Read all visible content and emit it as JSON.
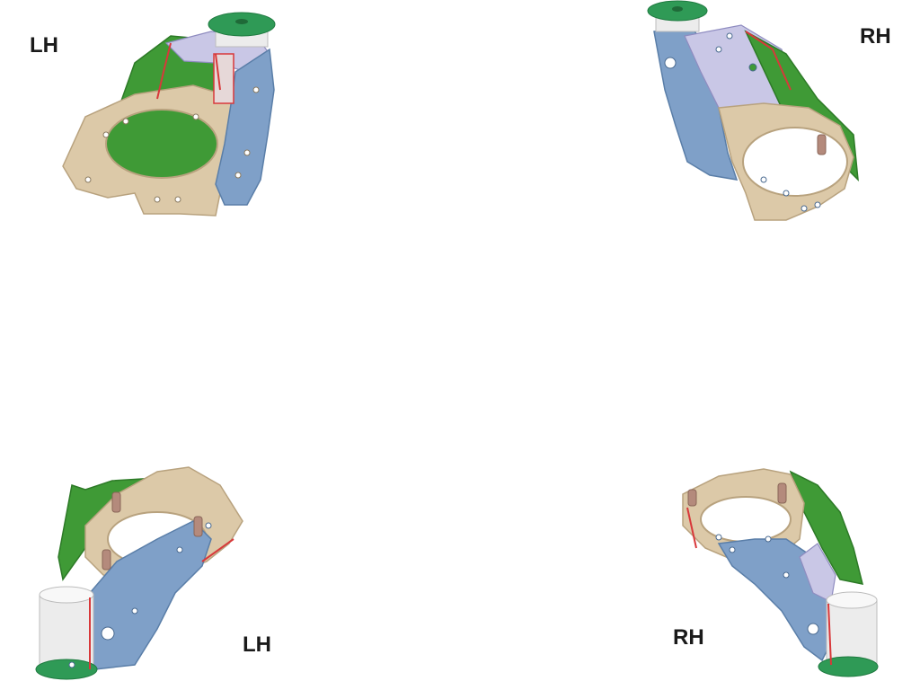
{
  "labels": {
    "top_left": "LH",
    "top_right": "RH",
    "bottom_left": "LH",
    "bottom_right": "RH"
  },
  "views": [
    {
      "id": "lh-top-view",
      "side": "LH",
      "orientation": "top"
    },
    {
      "id": "rh-top-view",
      "side": "RH",
      "orientation": "top"
    },
    {
      "id": "lh-bottom-view",
      "side": "LH",
      "orientation": "bottom"
    },
    {
      "id": "rh-bottom-view",
      "side": "RH",
      "orientation": "bottom"
    }
  ],
  "colors": {
    "green_panel": "#3f9a36",
    "green_dark": "#2d7a27",
    "tan_plate": "#dcc9a8",
    "tan_edge": "#b8a27e",
    "blue_bracket": "#7fa0c8",
    "blue_dark": "#5a7ea8",
    "lavender": "#c9c7e6",
    "tube_white": "#ececec",
    "tube_shadow": "#bdbdbd",
    "weld_red": "#d8383a",
    "cap_green": "#2f9a56",
    "stud": "#b48a7c"
  }
}
